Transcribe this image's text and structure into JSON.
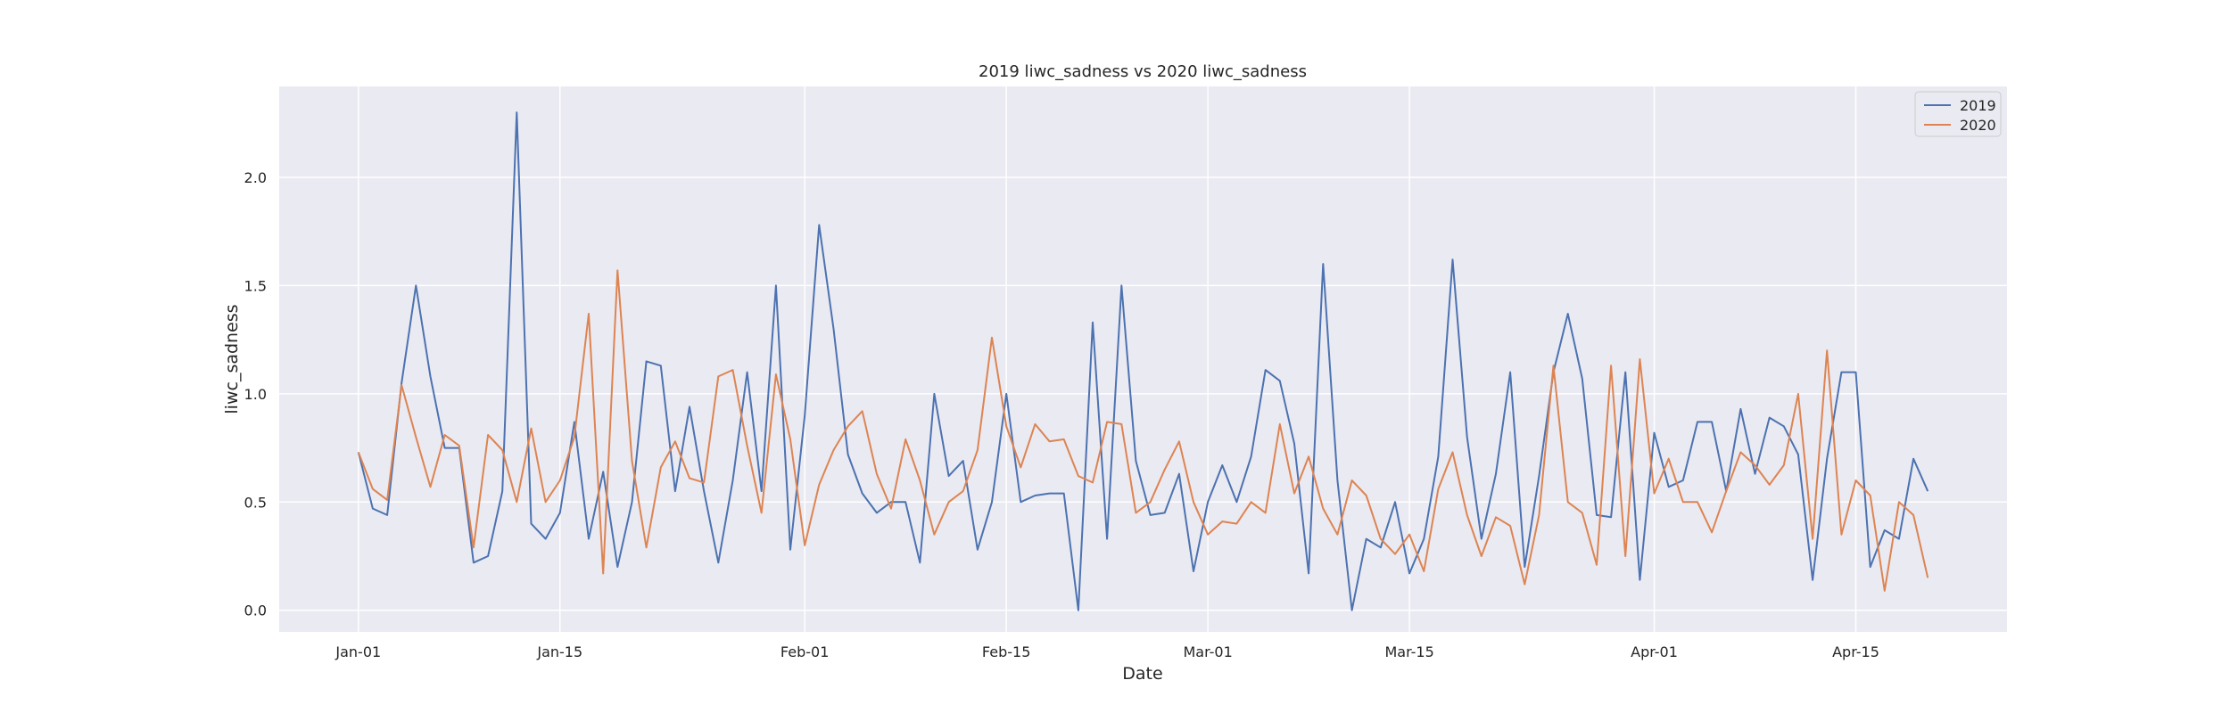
{
  "chart_data": {
    "type": "line",
    "title": "2019 liwc_sadness vs 2020 liwc_sadness",
    "xlabel": "Date",
    "ylabel": "liwc_sadness",
    "x_start": "Jan-01",
    "x_ticks": [
      {
        "day": 0,
        "label": "Jan-01"
      },
      {
        "day": 14,
        "label": "Jan-15"
      },
      {
        "day": 31,
        "label": "Feb-01"
      },
      {
        "day": 45,
        "label": "Feb-15"
      },
      {
        "day": 59,
        "label": "Mar-01"
      },
      {
        "day": 73,
        "label": "Mar-15"
      },
      {
        "day": 90,
        "label": "Apr-01"
      },
      {
        "day": 104,
        "label": "Apr-15"
      }
    ],
    "y_ticks": [
      "0.0",
      "0.5",
      "1.0",
      "1.5",
      "2.0"
    ],
    "xlim": [
      -5.5,
      114.5
    ],
    "ylim": [
      -0.1,
      2.42
    ],
    "grid": true,
    "legend_position": "top-right",
    "series": [
      {
        "name": "2019",
        "color": "#4c72b0",
        "values": [
          0.73,
          0.47,
          0.44,
          1.05,
          1.5,
          1.08,
          0.75,
          0.75,
          0.22,
          0.25,
          0.55,
          2.3,
          0.4,
          0.33,
          0.45,
          0.87,
          0.33,
          0.64,
          0.2,
          0.5,
          1.15,
          1.13,
          0.55,
          0.94,
          0.55,
          0.22,
          0.6,
          1.1,
          0.55,
          1.5,
          0.28,
          0.9,
          1.78,
          1.3,
          0.72,
          0.54,
          0.45,
          0.5,
          0.5,
          0.22,
          1.0,
          0.62,
          0.69,
          0.28,
          0.5,
          1.0,
          0.5,
          0.53,
          0.54,
          0.54,
          0.0,
          1.33,
          0.33,
          1.5,
          0.69,
          0.44,
          0.45,
          0.63,
          0.18,
          0.5,
          0.67,
          0.5,
          0.71,
          1.11,
          1.06,
          0.77,
          0.17,
          1.6,
          0.6,
          0.0,
          0.33,
          0.29,
          0.5,
          0.17,
          0.33,
          0.71,
          1.62,
          0.8,
          0.33,
          0.63,
          1.1,
          0.2,
          0.62,
          1.1,
          1.37,
          1.07,
          0.44,
          0.43,
          1.1,
          0.14,
          0.82,
          0.57,
          0.6,
          0.87,
          0.87,
          0.55,
          0.93,
          0.63,
          0.89,
          0.85,
          0.72,
          0.14,
          0.7,
          1.1,
          1.1,
          0.2,
          0.37,
          0.33,
          0.7,
          0.55
        ]
      },
      {
        "name": "2020",
        "color": "#dd8452",
        "values": [
          0.73,
          0.56,
          0.51,
          1.04,
          0.8,
          0.57,
          0.81,
          0.76,
          0.29,
          0.81,
          0.74,
          0.5,
          0.84,
          0.5,
          0.6,
          0.8,
          1.37,
          0.17,
          1.57,
          0.69,
          0.29,
          0.66,
          0.78,
          0.61,
          0.59,
          1.08,
          1.11,
          0.76,
          0.45,
          1.09,
          0.79,
          0.3,
          0.58,
          0.74,
          0.85,
          0.92,
          0.63,
          0.47,
          0.79,
          0.6,
          0.35,
          0.5,
          0.55,
          0.74,
          1.26,
          0.85,
          0.66,
          0.86,
          0.78,
          0.79,
          0.62,
          0.59,
          0.87,
          0.86,
          0.45,
          0.5,
          0.65,
          0.78,
          0.5,
          0.35,
          0.41,
          0.4,
          0.5,
          0.45,
          0.86,
          0.54,
          0.71,
          0.47,
          0.35,
          0.6,
          0.53,
          0.33,
          0.26,
          0.35,
          0.18,
          0.56,
          0.73,
          0.44,
          0.25,
          0.43,
          0.39,
          0.12,
          0.44,
          1.13,
          0.5,
          0.45,
          0.21,
          1.13,
          0.25,
          1.16,
          0.54,
          0.7,
          0.5,
          0.5,
          0.36,
          0.55,
          0.73,
          0.67,
          0.58,
          0.67,
          1.0,
          0.33,
          1.2,
          0.35,
          0.6,
          0.53,
          0.09,
          0.5,
          0.44,
          0.15
        ]
      }
    ]
  }
}
